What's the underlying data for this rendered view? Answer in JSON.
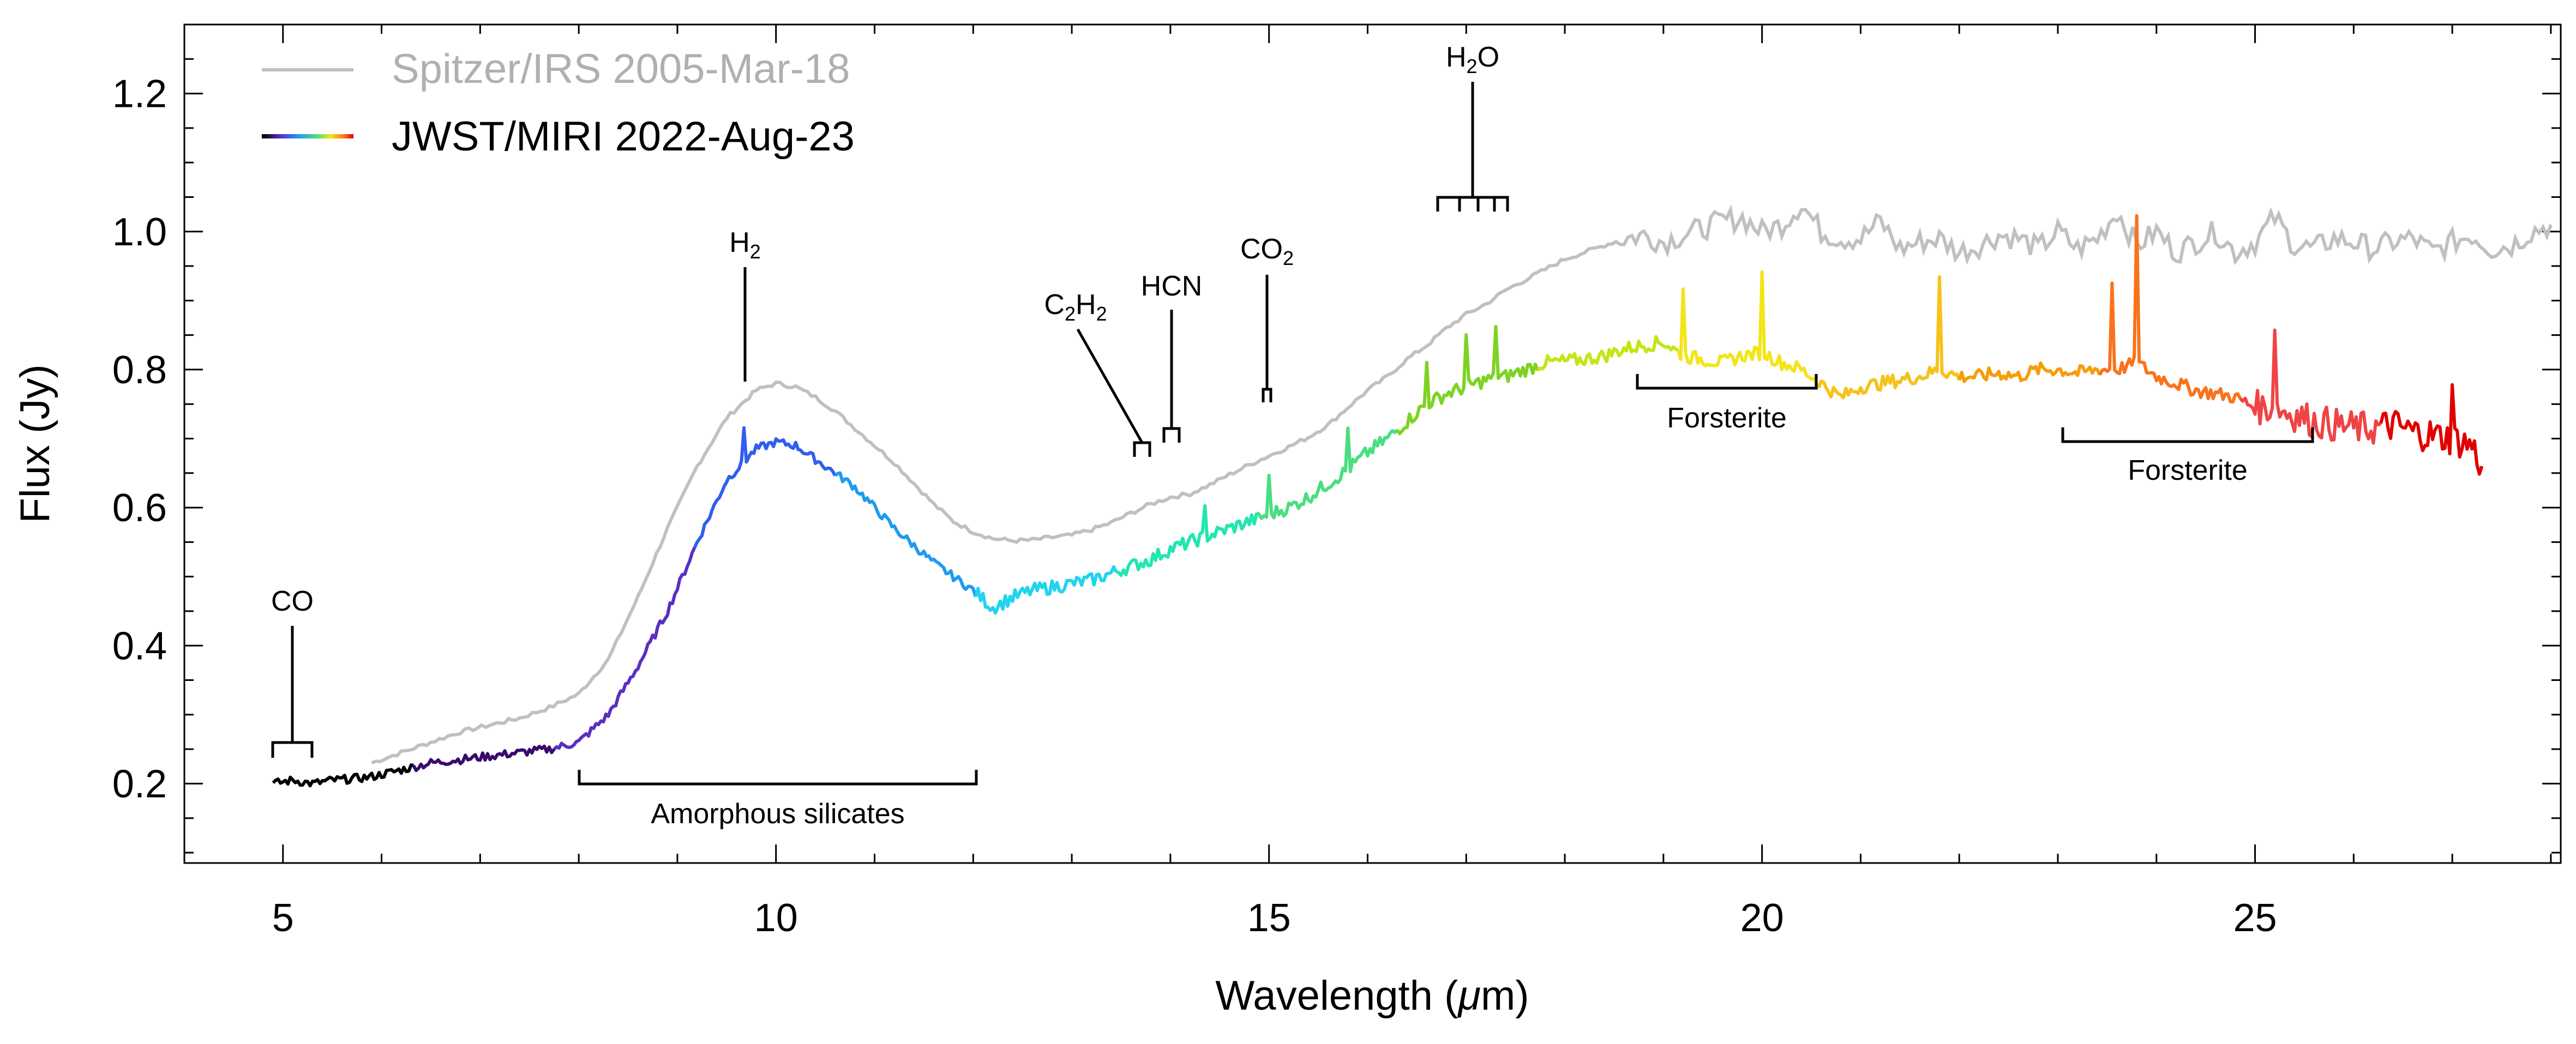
{
  "chart_data": {
    "type": "line",
    "xlabel": "Wavelength (μm)",
    "ylabel": "Flux (Jy)",
    "xlim": [
      4,
      28.1
    ],
    "ylim": [
      0.085,
      1.3
    ],
    "xticks": [
      5,
      10,
      15,
      20,
      25
    ],
    "xtick_labels": [
      "5",
      "10",
      "15",
      "20",
      "25"
    ],
    "yticks": [
      0.2,
      0.4,
      0.6,
      0.8,
      1.0,
      1.2
    ],
    "ytick_labels": [
      "0.2",
      "0.4",
      "0.6",
      "0.8",
      "1.0",
      "1.2"
    ],
    "grid": false,
    "legend_position": "top-left",
    "series": [
      {
        "name": "Spitzer/IRS 2005-Mar-18",
        "color": "#c0c0c0",
        "x": [
          5.9,
          6.2,
          6.5,
          6.8,
          7.1,
          7.4,
          7.7,
          8.0,
          8.3,
          8.6,
          8.9,
          9.2,
          9.5,
          9.8,
          10.0,
          10.2,
          10.4,
          10.6,
          10.8,
          11.0,
          11.2,
          11.4,
          11.6,
          11.8,
          12.0,
          12.2,
          12.4,
          12.6,
          12.8,
          13.0,
          13.2,
          13.4,
          13.6,
          13.8,
          14.0,
          14.2,
          14.4,
          14.6,
          14.8,
          15.0,
          15.2,
          15.4,
          15.6,
          15.8,
          16.0,
          16.2,
          16.4,
          16.6,
          16.8,
          17.0,
          17.2,
          17.4,
          17.6,
          17.8,
          18.0,
          18.2,
          18.4,
          18.6,
          18.8,
          19.0,
          19.2,
          19.4,
          19.6,
          19.8,
          20.0,
          20.2,
          20.4,
          20.6,
          20.8,
          21.0,
          21.2,
          21.4,
          21.6,
          21.8,
          22.0,
          22.2,
          22.4,
          22.6,
          22.8,
          23.0,
          23.2,
          23.4,
          23.6,
          23.8,
          24.0,
          24.2,
          24.4,
          24.6,
          24.8,
          25.0,
          25.2,
          25.4,
          25.6,
          25.8,
          26.0,
          26.2,
          26.4,
          26.6,
          26.8,
          27.0,
          27.2,
          27.4,
          27.6,
          27.8,
          28.0
        ],
        "values": [
          0.23,
          0.245,
          0.26,
          0.275,
          0.285,
          0.295,
          0.31,
          0.33,
          0.38,
          0.47,
          0.57,
          0.66,
          0.73,
          0.77,
          0.78,
          0.775,
          0.76,
          0.74,
          0.715,
          0.69,
          0.665,
          0.635,
          0.605,
          0.58,
          0.565,
          0.555,
          0.552,
          0.553,
          0.557,
          0.56,
          0.568,
          0.578,
          0.592,
          0.605,
          0.615,
          0.62,
          0.633,
          0.648,
          0.662,
          0.675,
          0.688,
          0.702,
          0.72,
          0.745,
          0.77,
          0.79,
          0.815,
          0.835,
          0.86,
          0.88,
          0.895,
          0.915,
          0.93,
          0.945,
          0.96,
          0.97,
          0.98,
          0.99,
          0.995,
          0.985,
          0.995,
          1.005,
          1.015,
          1.02,
          1.0,
          1.01,
          1.04,
          1.0,
          0.99,
          0.99,
          1.015,
          0.975,
          0.985,
          0.99,
          0.97,
          0.98,
          0.995,
          0.99,
          0.975,
          1.0,
          0.975,
          0.99,
          1.03,
          0.98,
          1.0,
          0.97,
          0.985,
          1.0,
          0.97,
          0.985,
          1.02,
          0.98,
          0.975,
          0.99,
          0.985,
          0.975,
          0.985,
          0.99,
          0.97,
          0.985,
          0.995,
          0.975,
          0.98,
          1.0,
          1.01
        ]
      },
      {
        "name": "JWST/MIRI 2022-Aug-23",
        "color_scale": [
          "#000000",
          "#3a0a6e",
          "#5a2fc2",
          "#2f5ef0",
          "#1e9bf0",
          "#22d3ee",
          "#22e6b0",
          "#4ade80",
          "#7dd321",
          "#c3e614",
          "#f2e518",
          "#f6c21c",
          "#f59e0b",
          "#f9731d",
          "#ef4444",
          "#e00000"
        ],
        "x": [
          4.9,
          5.1,
          5.3,
          5.5,
          5.7,
          5.9,
          6.2,
          6.5,
          6.8,
          7.1,
          7.4,
          7.7,
          8.0,
          8.3,
          8.6,
          8.9,
          9.2,
          9.5,
          9.8,
          10.0,
          10.2,
          10.4,
          10.6,
          10.8,
          11.0,
          11.2,
          11.4,
          11.6,
          11.8,
          12.0,
          12.2,
          12.4,
          12.6,
          12.8,
          13.0,
          13.2,
          13.4,
          13.6,
          13.8,
          14.0,
          14.2,
          14.4,
          14.6,
          14.8,
          15.0,
          15.2,
          15.4,
          15.6,
          15.8,
          16.0,
          16.2,
          16.4,
          16.6,
          16.8,
          17.0,
          17.2,
          17.4,
          17.6,
          17.8,
          18.0,
          18.2,
          18.4,
          18.6,
          18.8,
          19.0,
          19.2,
          19.4,
          19.6,
          19.8,
          20.0,
          20.2,
          20.4,
          20.6,
          20.8,
          21.0,
          21.2,
          21.4,
          21.6,
          21.8,
          22.0,
          22.2,
          22.4,
          22.6,
          22.8,
          23.0,
          23.2,
          23.4,
          23.6,
          23.8,
          24.0,
          24.2,
          24.4,
          24.6,
          24.8,
          25.0,
          25.2,
          25.4,
          25.6,
          25.8,
          26.0,
          26.2,
          26.4,
          26.6,
          26.8,
          27.0,
          27.2,
          27.3
        ],
        "values": [
          0.2,
          0.205,
          0.2,
          0.205,
          0.207,
          0.21,
          0.22,
          0.23,
          0.235,
          0.24,
          0.245,
          0.25,
          0.26,
          0.3,
          0.37,
          0.45,
          0.55,
          0.64,
          0.685,
          0.695,
          0.69,
          0.67,
          0.65,
          0.63,
          0.6,
          0.57,
          0.545,
          0.52,
          0.5,
          0.48,
          0.455,
          0.47,
          0.48,
          0.485,
          0.49,
          0.495,
          0.505,
          0.515,
          0.525,
          0.54,
          0.55,
          0.56,
          0.57,
          0.58,
          0.59,
          0.6,
          0.615,
          0.635,
          0.655,
          0.68,
          0.7,
          0.725,
          0.75,
          0.765,
          0.775,
          0.785,
          0.79,
          0.8,
          0.81,
          0.812,
          0.815,
          0.82,
          0.83,
          0.835,
          0.84,
          0.82,
          0.815,
          0.81,
          0.82,
          0.825,
          0.81,
          0.8,
          0.78,
          0.76,
          0.775,
          0.78,
          0.785,
          0.79,
          0.8,
          0.79,
          0.79,
          0.795,
          0.79,
          0.8,
          0.8,
          0.795,
          0.8,
          0.8,
          0.81,
          0.79,
          0.78,
          0.77,
          0.765,
          0.76,
          0.745,
          0.745,
          0.735,
          0.725,
          0.72,
          0.715,
          0.715,
          0.72,
          0.71,
          0.705,
          0.7,
          0.69,
          0.66
        ]
      }
    ],
    "annotations": [
      {
        "label": "CO",
        "x": 5.1
      },
      {
        "label": "H2",
        "x": 9.65
      },
      {
        "label": "C2H2",
        "x": 13.7
      },
      {
        "label": "HCN",
        "x": 14.0
      },
      {
        "label": "CO2",
        "x": 14.98
      },
      {
        "label": "H2O",
        "x": 17.05
      },
      {
        "label": "Amorphous silicates",
        "x_range": [
          8.0,
          12.0
        ]
      },
      {
        "label": "Forsterite",
        "x_range": [
          18.7,
          20.5
        ]
      },
      {
        "label": "Forsterite",
        "x_range": [
          23.0,
          25.5
        ]
      }
    ]
  },
  "text": {
    "xlabel_main": "Wavelength (",
    "xlabel_mu": "μ",
    "xlabel_end": "m)",
    "ylabel": "Flux (Jy)",
    "legend_spitzer": "Spitzer/IRS 2005-Mar-18",
    "legend_jwst": "JWST/MIRI 2022-Aug-23",
    "co": "CO",
    "h2_main": "H",
    "h2_sub": "2",
    "c2h2_c": "C",
    "c2h2_s1": "2",
    "c2h2_h": "H",
    "c2h2_s2": "2",
    "hcn": "HCN",
    "co2_main": "CO",
    "co2_sub": "2",
    "h2o_h": "H",
    "h2o_sub": "2",
    "h2o_o": "O",
    "amorphous": "Amorphous silicates",
    "forsterite1": "Forsterite",
    "forsterite2": "Forsterite"
  }
}
